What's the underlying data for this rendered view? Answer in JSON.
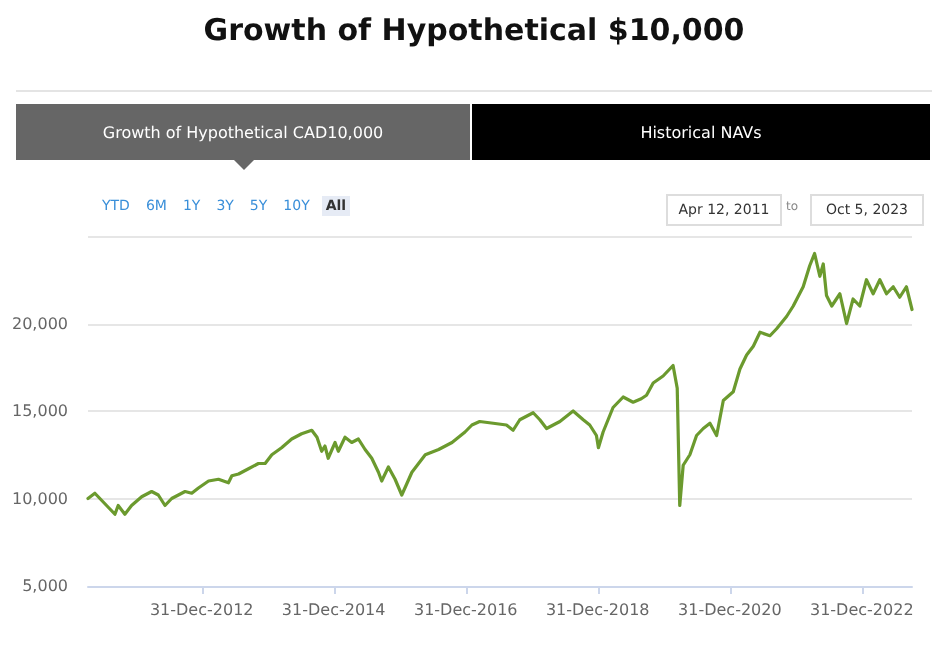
{
  "chart_data": {
    "type": "line",
    "title": "Growth of Hypothetical $10,000",
    "annotations": [
      "Growth of Hypothetical CAD10,000",
      "Historical NAVs",
      "YTD",
      "6M",
      "1Y",
      "3Y",
      "5Y",
      "10Y",
      "All",
      "Apr 12, 2011",
      "to",
      "Oct 5, 2023"
    ],
    "x": [
      "2011-04-12",
      "2011-05-20",
      "2011-06-26",
      "2011-08-02",
      "2011-09-08",
      "2011-09-26",
      "2011-11-02",
      "2011-12-09",
      "2012-02-03",
      "2012-03-29",
      "2012-05-05",
      "2012-06-11",
      "2012-07-18",
      "2012-09-30",
      "2012-11-06",
      "2012-12-13",
      "2013-02-07",
      "2013-04-03",
      "2013-05-28",
      "2013-06-16",
      "2013-07-23",
      "2013-09-16",
      "2013-11-10",
      "2013-12-17",
      "2014-01-23",
      "2014-03-18",
      "2014-05-13",
      "2014-07-07",
      "2014-09-01",
      "2014-09-30",
      "2014-10-26",
      "2014-11-13",
      "2014-12-01",
      "2015-01-08",
      "2015-01-26",
      "2015-03-04",
      "2015-04-10",
      "2015-05-17",
      "2015-06-23",
      "2015-07-30",
      "2015-09-05",
      "2015-09-23",
      "2015-10-30",
      "2015-12-06",
      "2016-01-12",
      "2016-02-07",
      "2016-03-08",
      "2016-04-14",
      "2016-05-21",
      "2016-08-03",
      "2016-10-16",
      "2016-12-27",
      "2017-02-03",
      "2017-03-18",
      "2017-06-01",
      "2017-08-13",
      "2017-09-19",
      "2017-10-26",
      "2018-01-08",
      "2018-02-14",
      "2018-03-23",
      "2018-06-05",
      "2018-08-17",
      "2018-10-12",
      "2018-11-17",
      "2018-12-24",
      "2019-01-04",
      "2019-01-30",
      "2019-03-26",
      "2019-05-21",
      "2019-07-15",
      "2019-08-29",
      "2019-09-27",
      "2019-11-03",
      "2019-12-28",
      "2020-02-21",
      "2020-03-15",
      "2020-03-29",
      "2020-04-17",
      "2020-05-24",
      "2020-06-30",
      "2020-08-06",
      "2020-09-12",
      "2020-10-19",
      "2020-11-25",
      "2021-01-19",
      "2021-02-25",
      "2021-04-03",
      "2021-05-10",
      "2021-06-16",
      "2021-08-10",
      "2021-09-16",
      "2021-11-10",
      "2021-12-17",
      "2022-02-10",
      "2022-03-18",
      "2022-04-14",
      "2022-05-13",
      "2022-06-01",
      "2022-06-19",
      "2022-07-18",
      "2022-09-01",
      "2022-10-08",
      "2022-11-13",
      "2022-12-20",
      "2023-01-26",
      "2023-03-04",
      "2023-04-10",
      "2023-05-17",
      "2023-06-23",
      "2023-07-29",
      "2023-09-04",
      "2023-10-05"
    ],
    "series": [
      {
        "color": "#6b9a2e",
        "values": [
          10000,
          10300,
          9900,
          9500,
          9100,
          9600,
          9100,
          9600,
          10100,
          10400,
          10200,
          9600,
          10000,
          10400,
          10300,
          10600,
          11000,
          11100,
          10900,
          11300,
          11400,
          11700,
          12000,
          12000,
          12500,
          12900,
          13400,
          13700,
          13900,
          13500,
          12700,
          13000,
          12300,
          13200,
          12700,
          13500,
          13200,
          13400,
          12800,
          12300,
          11500,
          11000,
          11800,
          11100,
          10200,
          10800,
          11500,
          12000,
          12500,
          12800,
          13200,
          13800,
          14200,
          14400,
          14300,
          14200,
          13900,
          14500,
          14900,
          14500,
          14000,
          14400,
          15000,
          14500,
          14200,
          13600,
          12900,
          13800,
          15200,
          15800,
          15500,
          15700,
          15900,
          16600,
          17000,
          17600,
          16300,
          9600,
          11900,
          12500,
          13600,
          14000,
          14300,
          13600,
          15600,
          16100,
          17400,
          18200,
          18700,
          19500,
          19300,
          19700,
          20400,
          21000,
          22100,
          23300,
          24000,
          22700,
          23400,
          21600,
          21000,
          21700,
          20000,
          21400,
          21000,
          22500,
          21700,
          22500,
          21700,
          22100,
          21500,
          22100,
          20800
        ]
      }
    ],
    "xlim": [
      "2011-04-12",
      "2023-10-05"
    ],
    "xticks": [
      {
        "value": "2012-12-31",
        "label": "31-Dec-2012"
      },
      {
        "value": "2014-12-31",
        "label": "31-Dec-2014"
      },
      {
        "value": "2016-12-31",
        "label": "31-Dec-2016"
      },
      {
        "value": "2018-12-31",
        "label": "31-Dec-2018"
      },
      {
        "value": "2020-12-31",
        "label": "31-Dec-2020"
      },
      {
        "value": "2022-12-31",
        "label": "31-Dec-2022"
      }
    ],
    "ylim": [
      5000,
      25000
    ],
    "yticks": [
      {
        "value": 5000,
        "label": "5,000"
      },
      {
        "value": 10000,
        "label": "10,000"
      },
      {
        "value": 15000,
        "label": "15,000"
      },
      {
        "value": 20000,
        "label": "20,000"
      },
      {
        "value": 25000,
        "label": null
      }
    ],
    "grid": "y",
    "marker": "none",
    "line_style": "solid"
  }
}
